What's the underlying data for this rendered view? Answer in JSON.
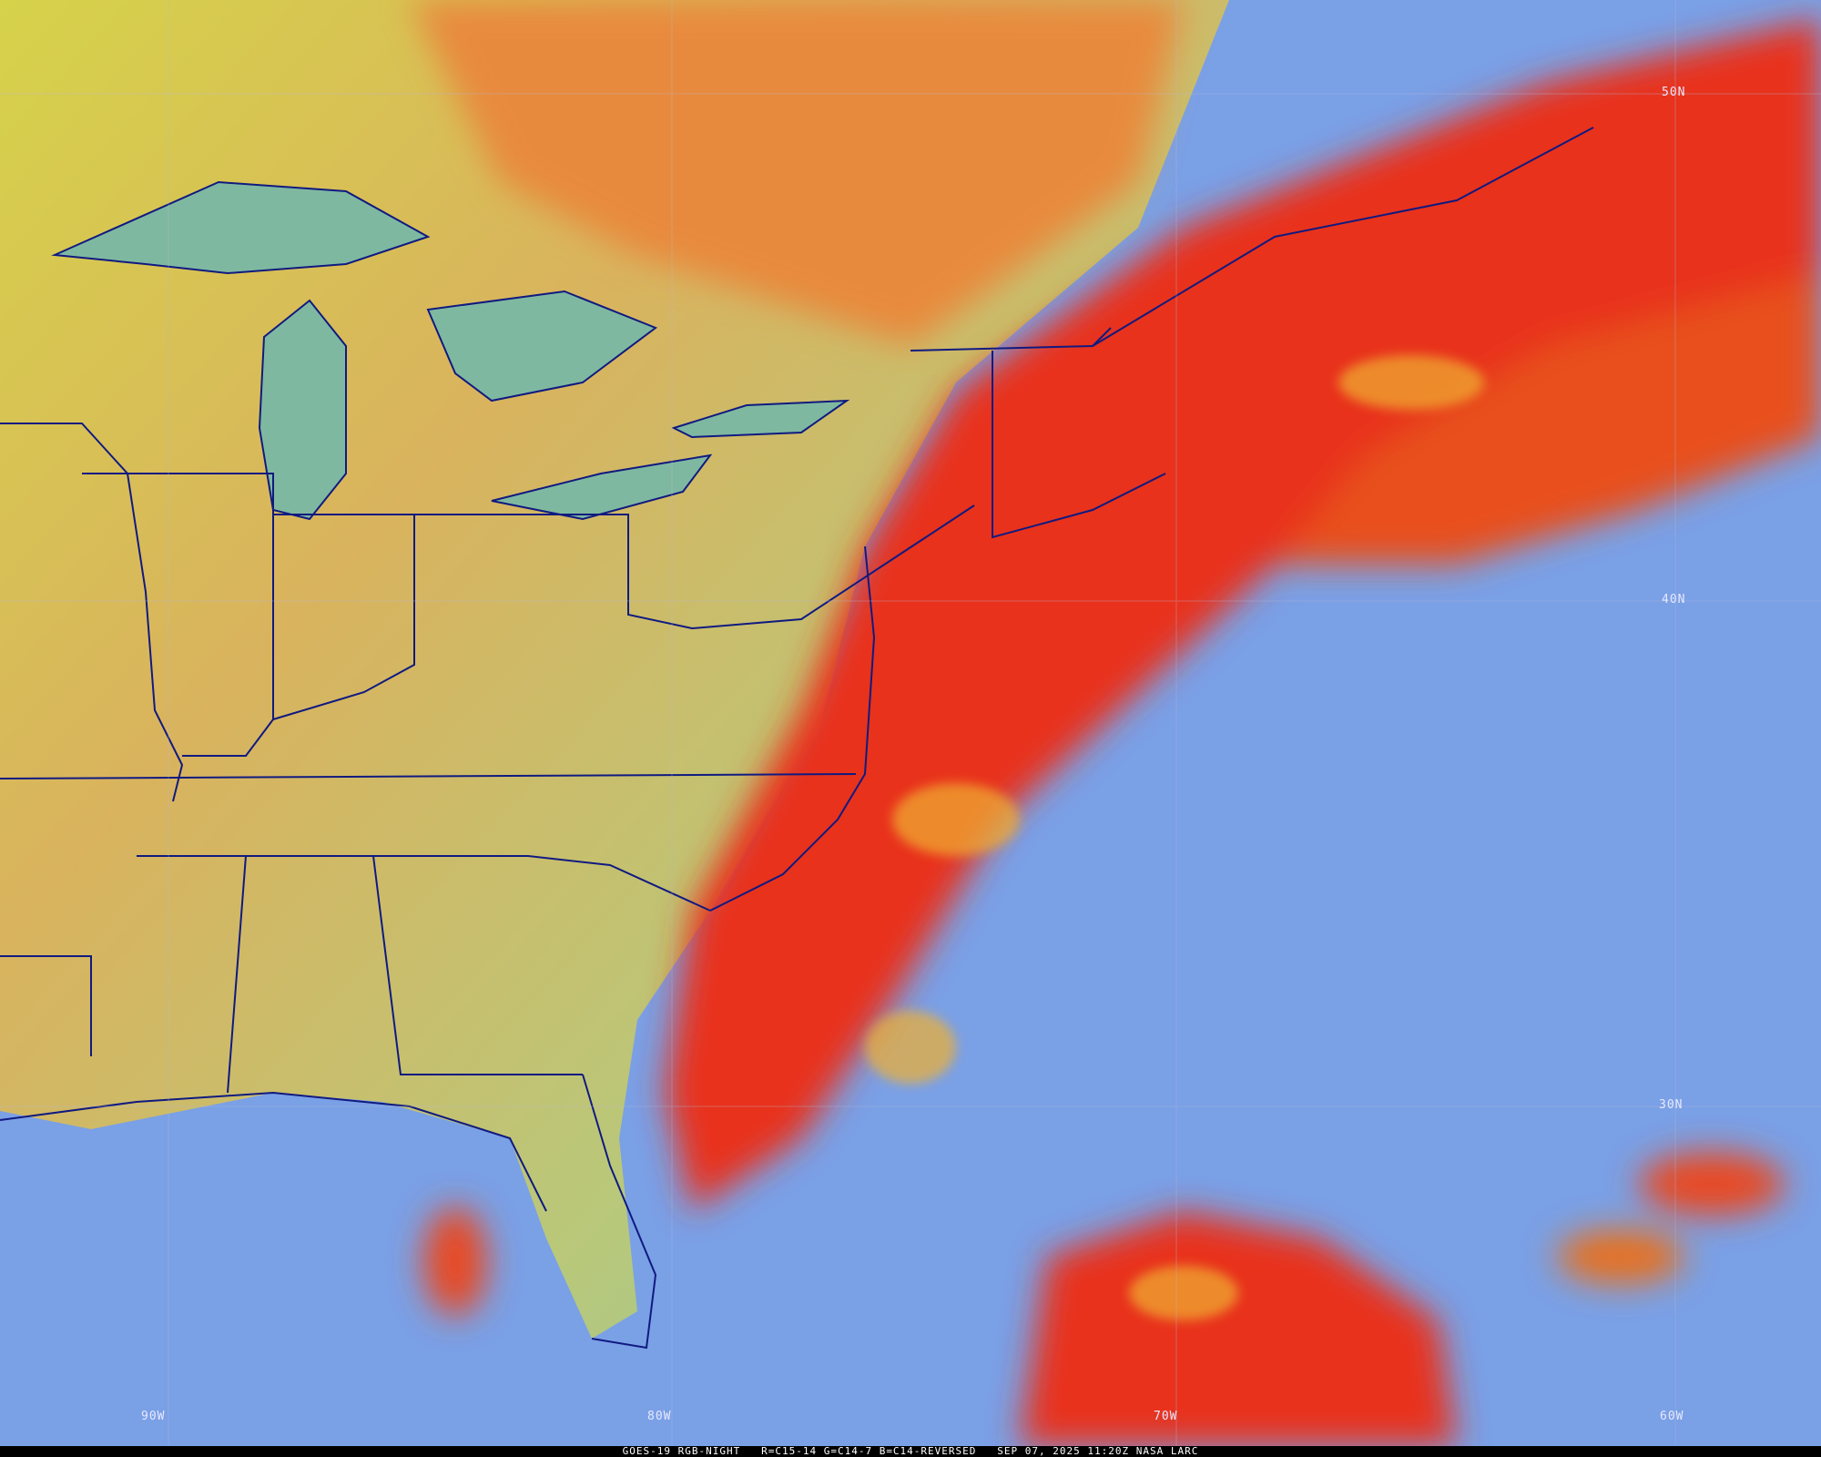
{
  "image": {
    "product": "GOES-19 RGB-NIGHT",
    "channels": "R=C15-14 G=C14-7 B=C14-REVERSED",
    "datetime": "SEP 07, 2025 11:20Z",
    "source": "NASA LARC",
    "caption": "GOES-19 RGB-NIGHT   R=C15-14 G=C14-7 B=C14-REVERSED   SEP 07, 2025 11:20Z NASA LARC"
  },
  "grid": {
    "latitudes": [
      "50N",
      "40N",
      "30N"
    ],
    "longitudes": [
      "90W",
      "80W",
      "70W",
      "60W"
    ]
  },
  "colors": {
    "land_clear": "#d8b060",
    "high_cloud": "#e8201a",
    "ocean_low_cloud": "#7fa3ea",
    "boundaries": "#101a80"
  }
}
